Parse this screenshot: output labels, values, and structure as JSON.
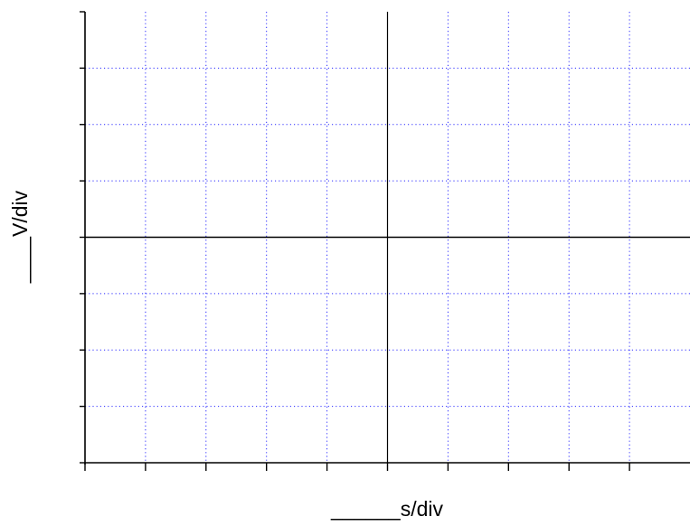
{
  "chart_data": {
    "type": "scatter",
    "title": "",
    "xlabel": "______s/div",
    "ylabel": "____V/div",
    "x_divisions": 10,
    "y_divisions": 8,
    "xlim": [
      -5,
      5
    ],
    "ylim": [
      -4,
      4
    ],
    "grid": true,
    "grid_style": "dotted",
    "series": []
  },
  "colors": {
    "grid": "#2a2aff",
    "axes": "#000000",
    "background": "#ffffff"
  }
}
